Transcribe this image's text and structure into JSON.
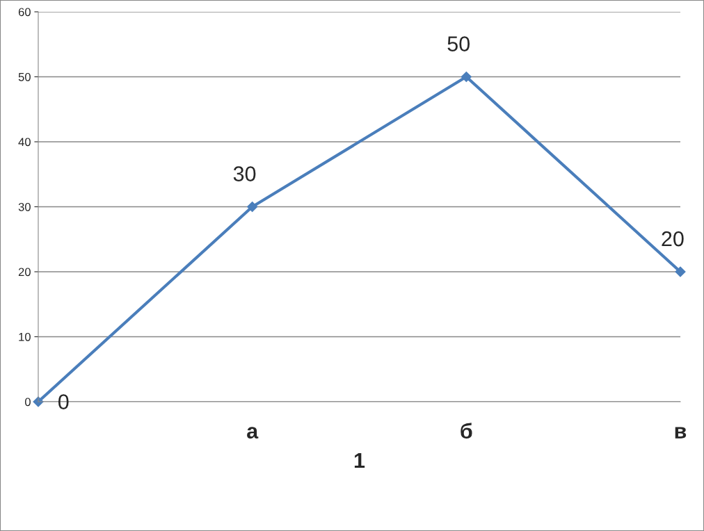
{
  "chart_data": {
    "type": "line",
    "xlabel": "1",
    "categories": [
      null,
      "а",
      "б",
      "в"
    ],
    "series": [
      {
        "color": "#4a7ebb",
        "values": [
          0,
          30,
          50,
          20
        ]
      }
    ],
    "ylim": [
      0,
      60
    ],
    "yticks": [
      0,
      10,
      20,
      30,
      40,
      50,
      60
    ],
    "grid": "y",
    "marker": "diamond",
    "line_style": "solid",
    "data_labels": true,
    "legend": false
  }
}
